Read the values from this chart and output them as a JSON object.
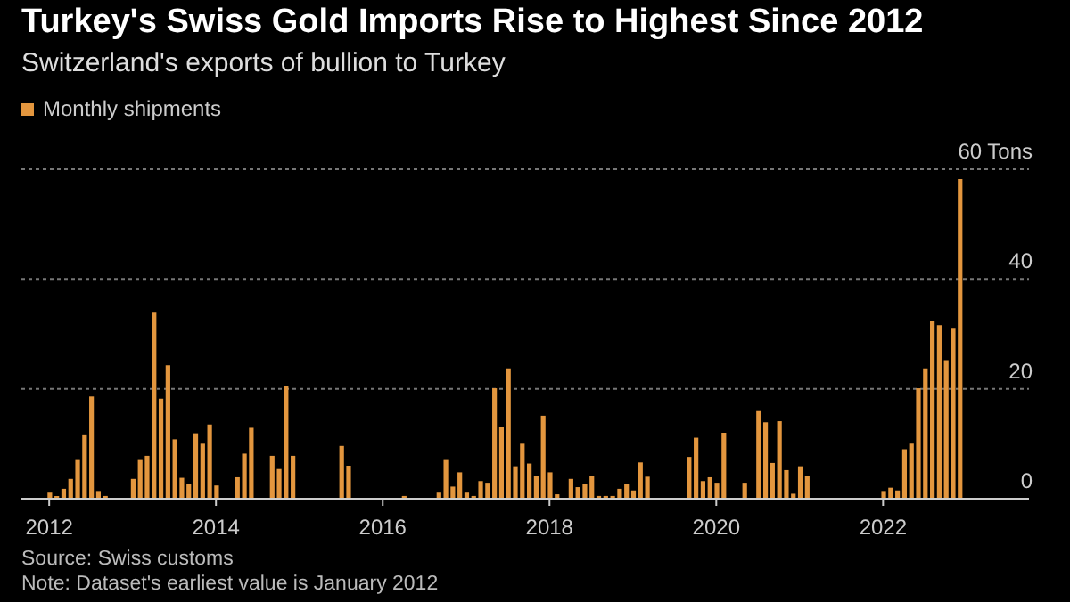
{
  "chart_data": {
    "type": "bar",
    "title": "Turkey's Swiss Gold Imports Rise to Highest Since 2012",
    "subtitle": "Switzerland's exports of bullion to Turkey",
    "annotations": [
      "Source: Swiss customs",
      "Note: Dataset's earliest value is January 2012"
    ],
    "x": [
      "2012-01",
      "2012-02",
      "2012-03",
      "2012-04",
      "2012-05",
      "2012-06",
      "2012-07",
      "2012-08",
      "2012-09",
      "2012-10",
      "2012-11",
      "2012-12",
      "2013-01",
      "2013-02",
      "2013-03",
      "2013-04",
      "2013-05",
      "2013-06",
      "2013-07",
      "2013-08",
      "2013-09",
      "2013-10",
      "2013-11",
      "2013-12",
      "2014-01",
      "2014-02",
      "2014-03",
      "2014-04",
      "2014-05",
      "2014-06",
      "2014-07",
      "2014-08",
      "2014-09",
      "2014-10",
      "2014-11",
      "2014-12",
      "2015-01",
      "2015-02",
      "2015-03",
      "2015-04",
      "2015-05",
      "2015-06",
      "2015-07",
      "2015-08",
      "2015-09",
      "2015-10",
      "2015-11",
      "2015-12",
      "2016-01",
      "2016-02",
      "2016-03",
      "2016-04",
      "2016-05",
      "2016-06",
      "2016-07",
      "2016-08",
      "2016-09",
      "2016-10",
      "2016-11",
      "2016-12",
      "2017-01",
      "2017-02",
      "2017-03",
      "2017-04",
      "2017-05",
      "2017-06",
      "2017-07",
      "2017-08",
      "2017-09",
      "2017-10",
      "2017-11",
      "2017-12",
      "2018-01",
      "2018-02",
      "2018-03",
      "2018-04",
      "2018-05",
      "2018-06",
      "2018-07",
      "2018-08",
      "2018-09",
      "2018-10",
      "2018-11",
      "2018-12",
      "2019-01",
      "2019-02",
      "2019-03",
      "2019-04",
      "2019-05",
      "2019-06",
      "2019-07",
      "2019-08",
      "2019-09",
      "2019-10",
      "2019-11",
      "2019-12",
      "2020-01",
      "2020-02",
      "2020-03",
      "2020-04",
      "2020-05",
      "2020-06",
      "2020-07",
      "2020-08",
      "2020-09",
      "2020-10",
      "2020-11",
      "2020-12",
      "2021-01",
      "2021-02",
      "2021-03",
      "2021-04",
      "2021-05",
      "2021-06",
      "2021-07",
      "2021-08",
      "2021-09",
      "2021-10",
      "2021-11",
      "2021-12",
      "2022-01",
      "2022-02",
      "2022-03",
      "2022-04",
      "2022-05",
      "2022-06",
      "2022-07",
      "2022-08",
      "2022-09",
      "2022-10",
      "2022-11",
      "2022-12"
    ],
    "series": [
      {
        "name": "Monthly shipments",
        "color": "#e3963e",
        "values": [
          1.1,
          0.5,
          1.8,
          3.6,
          7.2,
          11.7,
          18.6,
          1.4,
          0.5,
          0,
          0,
          0,
          3.6,
          7.2,
          7.8,
          34,
          18.2,
          24.3,
          10.8,
          3.8,
          2.6,
          11.9,
          10,
          13.5,
          2.4,
          0,
          0,
          3.9,
          8.2,
          12.9,
          0,
          0,
          7.8,
          5.4,
          20.5,
          7.8,
          0,
          0,
          0,
          0,
          0,
          0,
          9.6,
          6,
          0,
          0,
          0,
          0,
          0,
          0,
          0,
          0.5,
          0,
          0,
          0,
          0,
          1.1,
          7.2,
          2.2,
          4.8,
          1.1,
          0.5,
          3.2,
          2.9,
          20.1,
          13,
          23.7,
          5.9,
          10,
          6.4,
          4.2,
          15.1,
          4.8,
          0.8,
          0,
          3.6,
          2.1,
          2.6,
          4.2,
          0.5,
          0.5,
          0.5,
          1.8,
          2.6,
          1.5,
          6.6,
          4,
          0,
          0,
          0,
          0,
          0,
          7.6,
          11.1,
          3.2,
          3.9,
          2.9,
          12,
          0,
          0,
          2.9,
          0,
          16.1,
          13.9,
          6.5,
          14.1,
          5.2,
          0.9,
          5.9,
          4.1,
          0,
          0,
          0,
          0,
          0,
          0,
          0,
          0,
          0,
          0,
          1.4,
          2,
          1.5,
          9,
          10,
          20.1,
          23.7,
          32.4,
          31.6,
          25.2,
          31.1,
          58.2
        ]
      }
    ],
    "xlim": [
      "2011-09",
      "2023-10"
    ],
    "xticks": [
      "2012",
      "2014",
      "2016",
      "2018",
      "2020",
      "2022"
    ],
    "ylim": [
      0,
      60
    ],
    "yticks": [
      0,
      20,
      40,
      {
        "value": 60,
        "label": "60 Tons"
      }
    ],
    "grid": "y",
    "legend": "top left"
  }
}
